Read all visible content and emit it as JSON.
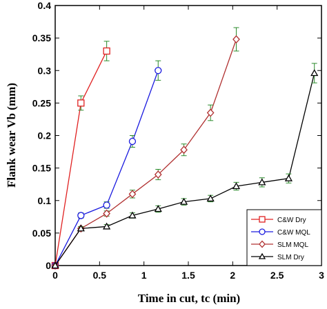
{
  "chart_data": {
    "type": "line",
    "title": "",
    "xlabel": "Time in cut, tc (min)",
    "ylabel": "Flank wear Vb (mm)",
    "xlim": [
      0,
      3
    ],
    "ylim": [
      0,
      0.4
    ],
    "x_ticks": [
      "0",
      "0.5",
      "1",
      "1.5",
      "2",
      "2.5",
      "3"
    ],
    "y_ticks": [
      "0",
      "0.05",
      "0.1",
      "0.15",
      "0.2",
      "0.25",
      "0.3",
      "0.35",
      "0.4"
    ],
    "x_tick_values": [
      0,
      0.5,
      1,
      1.5,
      2,
      2.5,
      3
    ],
    "y_tick_values": [
      0,
      0.05,
      0.1,
      0.15,
      0.2,
      0.25,
      0.3,
      0.35,
      0.4
    ],
    "grid": false,
    "legend_position": "bottom-right",
    "series": [
      {
        "name": "C&W Dry",
        "color": "#e02020",
        "marker": "square",
        "x": [
          0,
          0.29,
          0.58
        ],
        "y": [
          0,
          0.25,
          0.33
        ],
        "err": [
          0,
          0.011,
          0.015
        ]
      },
      {
        "name": "C&W MQL",
        "color": "#1a1adf",
        "marker": "circle",
        "x": [
          0,
          0.29,
          0.58,
          0.87,
          1.16
        ],
        "y": [
          0,
          0.077,
          0.093,
          0.191,
          0.3
        ],
        "err": [
          0,
          0.004,
          0.005,
          0.009,
          0.015
        ]
      },
      {
        "name": "SLM MQL",
        "color": "#b03030",
        "marker": "diamond",
        "x": [
          0,
          0.29,
          0.58,
          0.87,
          1.16,
          1.45,
          1.75,
          2.04
        ],
        "y": [
          0,
          0.057,
          0.08,
          0.11,
          0.14,
          0.178,
          0.235,
          0.348
        ],
        "err": [
          0,
          0.003,
          0.004,
          0.006,
          0.008,
          0.009,
          0.012,
          0.018
        ]
      },
      {
        "name": "SLM Dry",
        "color": "#000000",
        "marker": "triangle",
        "x": [
          0,
          0.29,
          0.58,
          0.87,
          1.16,
          1.45,
          1.75,
          2.04,
          2.33,
          2.63,
          2.92
        ],
        "y": [
          0,
          0.057,
          0.06,
          0.077,
          0.087,
          0.098,
          0.103,
          0.122,
          0.128,
          0.134,
          0.296
        ],
        "err": [
          0,
          0.003,
          0.003,
          0.004,
          0.005,
          0.005,
          0.005,
          0.006,
          0.007,
          0.007,
          0.015
        ]
      }
    ],
    "errorbar_color": "#2a8a2a"
  }
}
